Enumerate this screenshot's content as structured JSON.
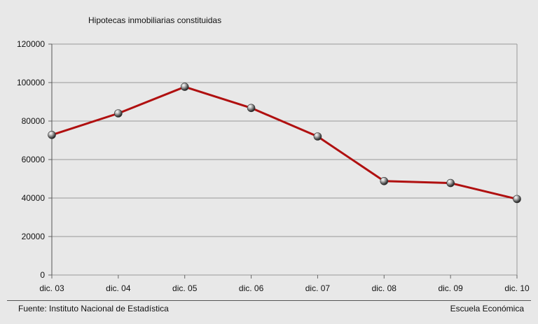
{
  "chart_data": {
    "type": "line",
    "title": "Hipotecas inmobiliarias constituidas",
    "xlabel": "",
    "ylabel": "",
    "categories": [
      "dic. 03",
      "dic. 04",
      "dic. 05",
      "dic. 06",
      "dic. 07",
      "dic. 08",
      "dic. 09",
      "dic. 10"
    ],
    "series": [
      {
        "name": "Hipotecas inmobiliarias constituidas",
        "values": [
          72800,
          84000,
          97800,
          86800,
          72000,
          48800,
          47800,
          39500
        ],
        "color": "#b01010"
      }
    ],
    "ylim": [
      0,
      120000
    ],
    "yticks": [
      0,
      20000,
      40000,
      60000,
      80000,
      100000,
      120000
    ],
    "grid": true,
    "legend": "none"
  },
  "footer": {
    "source": "Fuente: Instituto Nacional de Estadística",
    "credit": "Escuela Económica"
  },
  "colors": {
    "background": "#e8e8e8",
    "grid": "#999999",
    "line": "#b01010",
    "marker": "#777777"
  }
}
